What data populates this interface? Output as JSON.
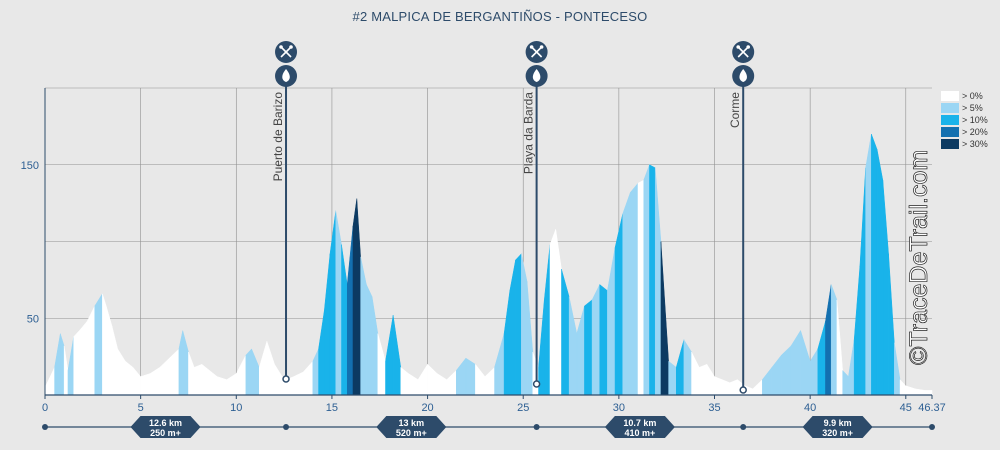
{
  "title": "#2 MALPICA DE BERGANTIÑOS - PONTECESO",
  "watermark": "©TraceDeTrail.com",
  "colors": {
    "background": "#e8e8e8",
    "grid": "#909090",
    "axis": "#2d4b6a",
    "tick_text": "#2d5f93",
    "marker": "#2d4b6a",
    "grade": [
      "#ffffff",
      "#9bd6f4",
      "#19b3ea",
      "#1370b0",
      "#0c3a62"
    ]
  },
  "legend": {
    "items": [
      {
        "label": "> 0%",
        "color": "#ffffff"
      },
      {
        "label": "> 5%",
        "color": "#9bd6f4"
      },
      {
        "label": "> 10%",
        "color": "#19b3ea"
      },
      {
        "label": "> 20%",
        "color": "#1370b0"
      },
      {
        "label": "> 30%",
        "color": "#0c3a62"
      }
    ]
  },
  "chart_data": {
    "type": "area",
    "title": "#2 MALPICA DE BERGANTIÑOS - PONTECESO",
    "xlabel": "",
    "ylabel": "",
    "xlim": [
      0,
      46.37
    ],
    "ylim": [
      0,
      200
    ],
    "x_ticks": [
      "0",
      "5",
      "10",
      "15",
      "20",
      "25",
      "30",
      "35",
      "40",
      "45",
      "46.37"
    ],
    "y_ticks": [
      "50",
      "150"
    ],
    "grid": true,
    "legend_position": "right",
    "series": [
      {
        "x": [
          0,
          0.5,
          0.8,
          1.0,
          1.2,
          1.5,
          1.8,
          2.2,
          2.6,
          3.0,
          3.2,
          3.5,
          3.8,
          4.2,
          4.6,
          5.0,
          5.5,
          6.0,
          6.5,
          7.0,
          7.2,
          7.5,
          7.8,
          8.2,
          8.6,
          9.0,
          9.5,
          10.0,
          10.5,
          10.8,
          11.2,
          11.6,
          12.0,
          12.4,
          12.6,
          13.0,
          13.5,
          14.0,
          14.3,
          14.6,
          14.9,
          15.2,
          15.5,
          15.8,
          16.1,
          16.3,
          16.5,
          16.8,
          17.1,
          17.4,
          17.8,
          18.2,
          18.6,
          19.0,
          19.5,
          20.0,
          20.5,
          21.0,
          21.5,
          22.0,
          22.5,
          23.0,
          23.5,
          24.0,
          24.3,
          24.6,
          24.9,
          25.2,
          25.5,
          25.8,
          26.1,
          26.4,
          26.7,
          27.0,
          27.4,
          27.8,
          28.2,
          28.6,
          29.0,
          29.4,
          29.8,
          30.2,
          30.6,
          31.0,
          31.3,
          31.6,
          31.9,
          32.2,
          32.6,
          33.0,
          33.4,
          33.8,
          34.2,
          34.6,
          35.0,
          35.4,
          35.8,
          36.2,
          36.6,
          37.0,
          37.5,
          38.0,
          38.5,
          39.0,
          39.5,
          40.0,
          40.4,
          40.8,
          41.1,
          41.4,
          41.7,
          42.0,
          42.3,
          42.6,
          42.9,
          43.2,
          43.5,
          43.8,
          44.1,
          44.4,
          44.7,
          45.0,
          45.5,
          46.0,
          46.37
        ],
        "y": [
          5,
          18,
          40,
          32,
          16,
          38,
          42,
          48,
          58,
          66,
          58,
          45,
          30,
          22,
          18,
          12,
          14,
          18,
          24,
          30,
          42,
          28,
          18,
          20,
          16,
          12,
          10,
          14,
          26,
          30,
          18,
          35,
          20,
          12,
          10,
          12,
          15,
          22,
          30,
          55,
          92,
          120,
          98,
          72,
          110,
          128,
          90,
          72,
          64,
          40,
          22,
          52,
          18,
          14,
          10,
          20,
          14,
          10,
          16,
          24,
          20,
          12,
          18,
          40,
          68,
          88,
          92,
          74,
          28,
          18,
          62,
          98,
          108,
          82,
          64,
          40,
          58,
          62,
          72,
          68,
          96,
          118,
          132,
          138,
          140,
          150,
          148,
          100,
          22,
          18,
          36,
          28,
          18,
          20,
          12,
          10,
          8,
          10,
          6,
          4,
          10,
          18,
          26,
          32,
          42,
          22,
          30,
          48,
          72,
          62,
          16,
          12,
          36,
          84,
          148,
          170,
          160,
          140,
          92,
          34,
          10,
          6,
          4,
          3,
          3
        ],
        "grade_class": [
          0,
          1,
          1,
          0,
          1,
          0,
          0,
          0,
          1,
          0,
          0,
          0,
          0,
          0,
          0,
          0,
          0,
          0,
          0,
          1,
          1,
          0,
          0,
          0,
          0,
          0,
          0,
          0,
          1,
          1,
          0,
          0,
          0,
          0,
          0,
          0,
          0,
          1,
          2,
          2,
          2,
          1,
          2,
          3,
          4,
          4,
          1,
          1,
          1,
          0,
          2,
          2,
          0,
          0,
          0,
          0,
          0,
          0,
          1,
          1,
          0,
          0,
          1,
          2,
          2,
          2,
          1,
          1,
          0,
          2,
          2,
          0,
          0,
          2,
          1,
          1,
          2,
          1,
          2,
          1,
          2,
          1,
          1,
          0,
          1,
          2,
          1,
          4,
          1,
          2,
          1,
          0,
          0,
          0,
          0,
          0,
          0,
          0,
          0,
          0,
          1,
          1,
          1,
          1,
          1,
          1,
          2,
          3,
          1,
          0,
          1,
          1,
          2,
          2,
          1,
          2,
          2,
          2,
          2,
          1,
          0,
          0,
          0,
          0,
          0
        ]
      }
    ],
    "pois": [
      {
        "km": 12.6,
        "label": "Puerto de Barizo",
        "icons": [
          "food-icon",
          "water-icon"
        ]
      },
      {
        "km": 25.7,
        "label": "Playa da Barda",
        "icons": [
          "food-icon",
          "water-icon"
        ]
      },
      {
        "km": 36.5,
        "label": "Corme",
        "icons": [
          "food-icon",
          "water-icon"
        ]
      }
    ],
    "segments": [
      {
        "start": 0,
        "end": 12.6,
        "distance": "12.6 km",
        "elevation": "250 m+"
      },
      {
        "start": 12.6,
        "end": 25.7,
        "distance": "13 km",
        "elevation": "520 m+"
      },
      {
        "start": 25.7,
        "end": 36.5,
        "distance": "10.7 km",
        "elevation": "410 m+"
      },
      {
        "start": 36.5,
        "end": 46.37,
        "distance": "9.9 km",
        "elevation": "320 m+"
      }
    ]
  }
}
